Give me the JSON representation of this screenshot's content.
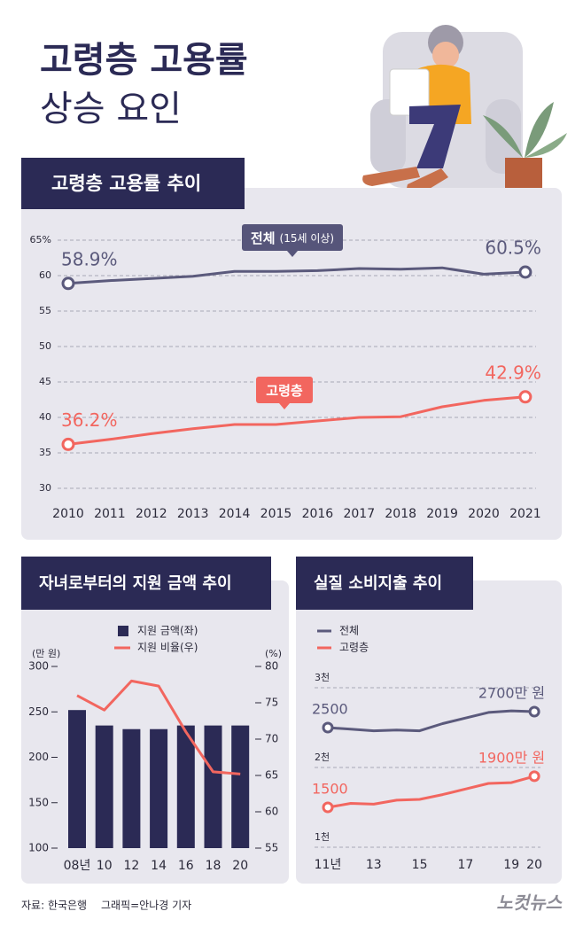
{
  "header": {
    "title_line1": "고령층 고용률",
    "title_line2": "상승 요인"
  },
  "chart_data": [
    {
      "type": "line",
      "title": "고령층 고용률 추이",
      "categories": [
        "2010",
        "2011",
        "2012",
        "2013",
        "2014",
        "2015",
        "2016",
        "2017",
        "2018",
        "2019",
        "2020",
        "2021"
      ],
      "series": [
        {
          "name": "전체",
          "note": "(15세 이상)",
          "color": "#5b5a7c",
          "values": [
            58.9,
            59.3,
            59.6,
            59.9,
            60.6,
            60.6,
            60.7,
            61.0,
            60.9,
            61.1,
            60.2,
            60.5
          ],
          "value_labels": [
            "58.9%",
            null,
            null,
            null,
            null,
            null,
            null,
            null,
            null,
            null,
            null,
            "60.5%"
          ]
        },
        {
          "name": "고령층",
          "color": "#f2665f",
          "values": [
            36.2,
            36.9,
            37.7,
            38.4,
            39.0,
            39.0,
            39.5,
            40.0,
            40.1,
            41.5,
            42.4,
            42.9
          ],
          "value_labels": [
            "36.2%",
            null,
            null,
            null,
            null,
            null,
            null,
            null,
            null,
            null,
            null,
            "42.9%"
          ]
        }
      ],
      "ylim": [
        30,
        65
      ],
      "yticks": [
        30,
        35,
        40,
        45,
        50,
        55,
        60,
        {
          "value": 65,
          "label": "65%"
        }
      ],
      "grid": true
    },
    {
      "type": "combo",
      "title": "자녀로부터의 지원 금액 추이",
      "categories": [
        "08년",
        "10",
        "12",
        "14",
        "16",
        "18",
        "20"
      ],
      "ylabel": "(만 원)",
      "y2label": "(%)",
      "series": [
        {
          "name": "지원 금액(좌)",
          "mark": "bar",
          "color": "#2b2a55",
          "values": [
            252,
            235,
            231,
            231,
            235,
            235,
            235
          ]
        },
        {
          "name": "지원 비율(우)",
          "mark": "line",
          "axis": "y2",
          "color": "#f2665f",
          "values": [
            76.0,
            74.0,
            78.0,
            77.3,
            71.0,
            65.5,
            65.2
          ]
        }
      ],
      "ylim": [
        100,
        300
      ],
      "yticks": [
        100,
        150,
        200,
        250,
        300
      ],
      "y2lim": [
        55,
        80
      ],
      "y2ticks": [
        55,
        60,
        65,
        70,
        75,
        80
      ]
    },
    {
      "type": "line",
      "title": "실질 소비지출 추이",
      "categories": [
        "11년",
        null,
        "13",
        null,
        "15",
        null,
        "17",
        null,
        "19",
        "20"
      ],
      "series": [
        {
          "name": "전체",
          "color": "#5b5a7c",
          "values": [
            2500,
            2480,
            2460,
            2470,
            2460,
            2550,
            2620,
            2690,
            2710,
            2700
          ],
          "value_labels": [
            "2500",
            null,
            null,
            null,
            null,
            null,
            null,
            null,
            null,
            "2700만 원"
          ]
        },
        {
          "name": "고령층",
          "color": "#f2665f",
          "values": [
            1500,
            1550,
            1540,
            1590,
            1600,
            1660,
            1730,
            1800,
            1810,
            1890
          ],
          "value_labels": [
            "1500",
            null,
            null,
            null,
            null,
            null,
            null,
            null,
            null,
            "1900만 원"
          ]
        }
      ],
      "ylim": [
        1000,
        3000
      ],
      "yticks": [
        {
          "value": 1000,
          "label": "1천"
        },
        {
          "value": 2000,
          "label": "2천"
        },
        {
          "value": 3000,
          "label": "3천"
        }
      ],
      "grid": true
    }
  ],
  "footer": {
    "source": "자료: 한국은행",
    "credit": "그래픽=안나경 기자",
    "logo": "노컷뉴스"
  }
}
